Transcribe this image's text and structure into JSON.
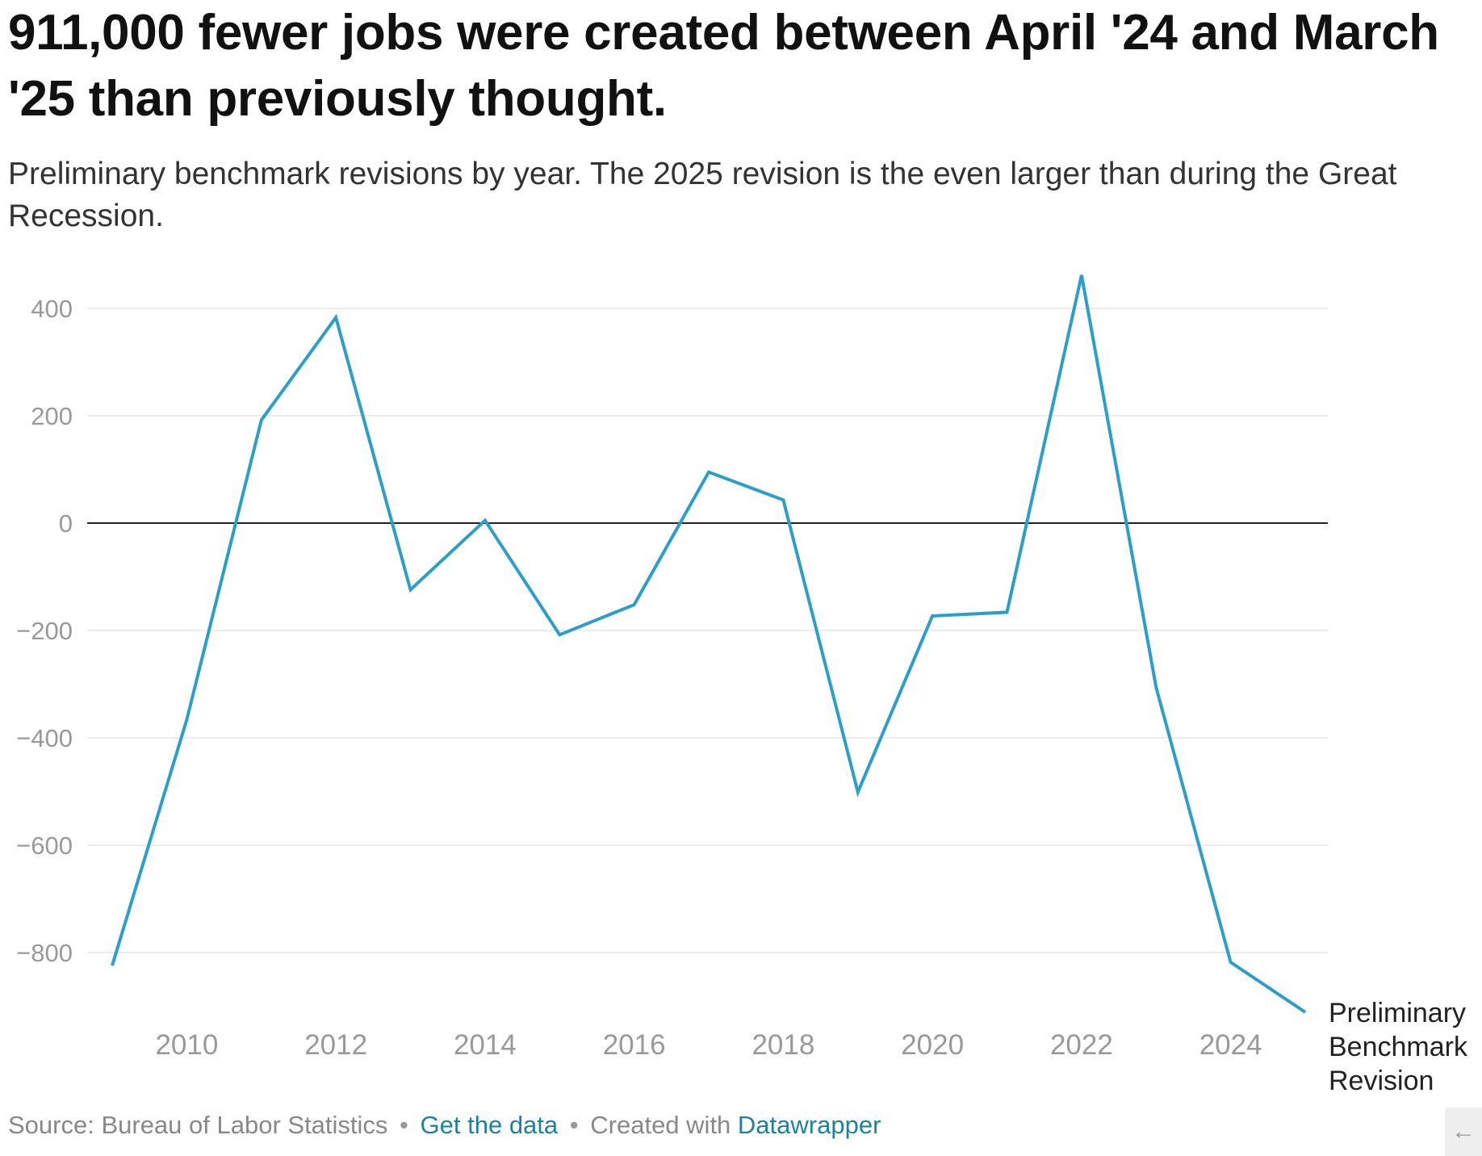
{
  "header": {
    "title": "911,000 fewer jobs were created between April '24 and March '25 than previously thought.",
    "subtitle": "Preliminary benchmark revisions by year. The 2025 revision is the even larger than during the Great Recession."
  },
  "footer": {
    "source": "Source: Bureau of Labor Statistics",
    "separator": "•",
    "get_data": "Get the data",
    "created_with": "Created with",
    "datawrapper": "Datawrapper"
  },
  "nav": {
    "arrow_icon": "←"
  },
  "colors": {
    "line": "#2b9fc9",
    "zero_line": "#222222",
    "grid": "#e6e6e6",
    "tick_label": "#999999",
    "link": "#1d81a2"
  },
  "chart_data": {
    "type": "line",
    "title": "911,000 fewer jobs were created between April '24 and March '25 than previously thought.",
    "subtitle": "Preliminary benchmark revisions by year. The 2025 revision is the even larger than during the Great Recession.",
    "xlabel": "",
    "ylabel": "",
    "xlim": [
      2009,
      2025
    ],
    "ylim": [
      -911,
      460
    ],
    "grid": true,
    "x_ticks": [
      2010,
      2012,
      2014,
      2016,
      2018,
      2020,
      2022,
      2024
    ],
    "y_ticks": [
      400,
      200,
      0,
      -200,
      -400,
      -600,
      -800
    ],
    "y_tick_labels": [
      "400",
      "200",
      "0",
      "−200",
      "−400",
      "−600",
      "−800"
    ],
    "series": [
      {
        "name": "Preliminary Benchmark Revision",
        "label_lines": [
          "Preliminary",
          "Benchmark",
          "Revision"
        ],
        "x": [
          2009,
          2010,
          2011,
          2012,
          2013,
          2014,
          2015,
          2016,
          2017,
          2018,
          2019,
          2020,
          2021,
          2022,
          2023,
          2024,
          2025
        ],
        "values": [
          -824,
          -366,
          192,
          383,
          -124,
          5,
          -208,
          -152,
          95,
          43,
          -501,
          -173,
          -166,
          462,
          -306,
          -818,
          -911
        ]
      }
    ]
  }
}
